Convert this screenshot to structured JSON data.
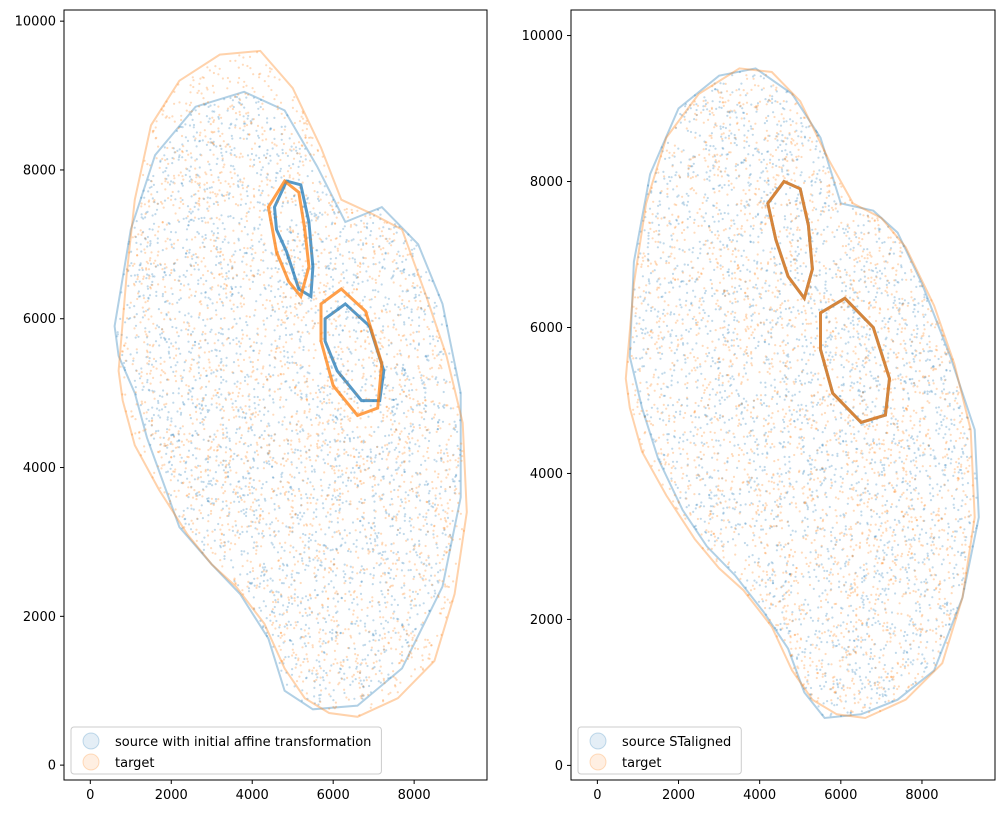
{
  "colors": {
    "source": "#1f77b4",
    "target": "#ff7f0e",
    "axes": "#000000",
    "legend_frame": "#cccccc"
  },
  "chart_data": [
    {
      "type": "scatter",
      "title": "",
      "xlabel": "",
      "ylabel": "",
      "xlim": [
        -650,
        9800
      ],
      "ylim": [
        -200,
        10150
      ],
      "xticks": [
        0,
        2000,
        4000,
        6000,
        8000
      ],
      "xtick_labels": [
        "0",
        "2000",
        "4000",
        "6000",
        "8000"
      ],
      "yticks": [
        0,
        2000,
        4000,
        6000,
        8000,
        10000
      ],
      "ytick_labels": [
        "0",
        "2000",
        "4000",
        "6000",
        "8000",
        "10000"
      ],
      "grid": false,
      "legend_position": "lower-left",
      "series": [
        {
          "name": "source with initial affine transformation",
          "color": "#1f77b4",
          "outline": [
            [
              600,
              5900
            ],
            [
              1000,
              7200
            ],
            [
              1600,
              8200
            ],
            [
              2600,
              8850
            ],
            [
              3800,
              9050
            ],
            [
              4800,
              8800
            ],
            [
              5600,
              8050
            ],
            [
              6300,
              7300
            ],
            [
              7200,
              7500
            ],
            [
              8100,
              7000
            ],
            [
              8700,
              6200
            ],
            [
              9150,
              5000
            ],
            [
              9150,
              3600
            ],
            [
              8700,
              2400
            ],
            [
              7700,
              1300
            ],
            [
              6600,
              800
            ],
            [
              5500,
              750
            ],
            [
              4800,
              1000
            ],
            [
              4400,
              1700
            ],
            [
              3700,
              2300
            ],
            [
              3000,
              2700
            ],
            [
              2200,
              3200
            ],
            [
              1800,
              3800
            ],
            [
              1400,
              4400
            ],
            [
              1100,
              5000
            ],
            [
              700,
              5500
            ]
          ],
          "features": [
            {
              "kind": "loop",
              "points": [
                [
                  4550,
                  7500
                ],
                [
                  4850,
                  7850
                ],
                [
                  5200,
                  7800
                ],
                [
                  5400,
                  7300
                ],
                [
                  5500,
                  6700
                ],
                [
                  5450,
                  6300
                ],
                [
                  5150,
                  6400
                ],
                [
                  4850,
                  6900
                ],
                [
                  4600,
                  7200
                ]
              ]
            },
            {
              "kind": "loop",
              "points": [
                [
                  5800,
                  6000
                ],
                [
                  6300,
                  6200
                ],
                [
                  6900,
                  5900
                ],
                [
                  7250,
                  5300
                ],
                [
                  7150,
                  4900
                ],
                [
                  6700,
                  4900
                ],
                [
                  6100,
                  5300
                ],
                [
                  5800,
                  5700
                ]
              ]
            }
          ],
          "n_points": 2600
        },
        {
          "name": "target",
          "color": "#ff7f0e",
          "outline": [
            [
              700,
              5300
            ],
            [
              900,
              6600
            ],
            [
              1100,
              7600
            ],
            [
              1500,
              8600
            ],
            [
              2200,
              9200
            ],
            [
              3200,
              9550
            ],
            [
              4200,
              9600
            ],
            [
              5000,
              9100
            ],
            [
              5700,
              8300
            ],
            [
              6200,
              7600
            ],
            [
              7000,
              7400
            ],
            [
              7700,
              7200
            ],
            [
              8300,
              6300
            ],
            [
              8800,
              5500
            ],
            [
              9200,
              4600
            ],
            [
              9300,
              3400
            ],
            [
              9000,
              2300
            ],
            [
              8500,
              1400
            ],
            [
              7600,
              900
            ],
            [
              6600,
              650
            ],
            [
              5900,
              700
            ],
            [
              5300,
              900
            ],
            [
              4800,
              1300
            ],
            [
              4300,
              1900
            ],
            [
              3600,
              2400
            ],
            [
              3000,
              2700
            ],
            [
              2400,
              3100
            ],
            [
              1700,
              3700
            ],
            [
              1100,
              4300
            ],
            [
              800,
              4900
            ]
          ],
          "features": [
            {
              "kind": "loop",
              "points": [
                [
                  4400,
                  7500
                ],
                [
                  4800,
                  7850
                ],
                [
                  5150,
                  7700
                ],
                [
                  5300,
                  7200
                ],
                [
                  5400,
                  6700
                ],
                [
                  5200,
                  6300
                ],
                [
                  4900,
                  6500
                ],
                [
                  4600,
                  6900
                ]
              ]
            },
            {
              "kind": "loop",
              "points": [
                [
                  5700,
                  6200
                ],
                [
                  6200,
                  6400
                ],
                [
                  6800,
                  6100
                ],
                [
                  7200,
                  5400
                ],
                [
                  7100,
                  4800
                ],
                [
                  6600,
                  4700
                ],
                [
                  6000,
                  5100
                ],
                [
                  5700,
                  5700
                ]
              ]
            }
          ],
          "n_points": 2600
        }
      ]
    },
    {
      "type": "scatter",
      "title": "",
      "xlabel": "",
      "ylabel": "",
      "xlim": [
        -650,
        9800
      ],
      "ylim": [
        -200,
        10350
      ],
      "xticks": [
        0,
        2000,
        4000,
        6000,
        8000
      ],
      "xtick_labels": [
        "0",
        "2000",
        "4000",
        "6000",
        "8000"
      ],
      "yticks": [
        0,
        2000,
        4000,
        6000,
        8000,
        10000
      ],
      "ytick_labels": [
        "0",
        "2000",
        "4000",
        "6000",
        "8000",
        "10000"
      ],
      "grid": false,
      "legend_position": "lower-left",
      "series": [
        {
          "name": "source STaligned",
          "color": "#1f77b4",
          "outline": [
            [
              800,
              5600
            ],
            [
              900,
              6900
            ],
            [
              1300,
              8100
            ],
            [
              2000,
              9000
            ],
            [
              3000,
              9450
            ],
            [
              3900,
              9550
            ],
            [
              4800,
              9200
            ],
            [
              5500,
              8600
            ],
            [
              6000,
              7700
            ],
            [
              6800,
              7600
            ],
            [
              7400,
              7300
            ],
            [
              8000,
              6600
            ],
            [
              8700,
              5600
            ],
            [
              9300,
              4600
            ],
            [
              9400,
              3400
            ],
            [
              9000,
              2300
            ],
            [
              8300,
              1300
            ],
            [
              7400,
              900
            ],
            [
              6500,
              700
            ],
            [
              5600,
              650
            ],
            [
              5100,
              1000
            ],
            [
              4700,
              1600
            ],
            [
              4100,
              2100
            ],
            [
              3400,
              2600
            ],
            [
              2700,
              3000
            ],
            [
              2100,
              3500
            ],
            [
              1500,
              4200
            ],
            [
              1100,
              4900
            ]
          ],
          "features": [
            {
              "kind": "loop",
              "points": [
                [
                  4200,
                  7700
                ],
                [
                  4600,
                  8000
                ],
                [
                  5000,
                  7900
                ],
                [
                  5200,
                  7400
                ],
                [
                  5300,
                  6800
                ],
                [
                  5100,
                  6400
                ],
                [
                  4700,
                  6700
                ],
                [
                  4400,
                  7200
                ]
              ]
            },
            {
              "kind": "loop",
              "points": [
                [
                  5500,
                  6200
                ],
                [
                  6100,
                  6400
                ],
                [
                  6800,
                  6000
                ],
                [
                  7200,
                  5300
                ],
                [
                  7100,
                  4800
                ],
                [
                  6500,
                  4700
                ],
                [
                  5800,
                  5100
                ],
                [
                  5500,
                  5700
                ]
              ]
            }
          ],
          "n_points": 2600
        },
        {
          "name": "target",
          "color": "#ff7f0e",
          "outline": [
            [
              700,
              5300
            ],
            [
              900,
              6600
            ],
            [
              1200,
              7700
            ],
            [
              1700,
              8600
            ],
            [
              2500,
              9200
            ],
            [
              3500,
              9550
            ],
            [
              4300,
              9500
            ],
            [
              5000,
              9100
            ],
            [
              5700,
              8300
            ],
            [
              6300,
              7700
            ],
            [
              7000,
              7500
            ],
            [
              7600,
              7100
            ],
            [
              8300,
              6300
            ],
            [
              8800,
              5500
            ],
            [
              9200,
              4600
            ],
            [
              9300,
              3400
            ],
            [
              9000,
              2300
            ],
            [
              8500,
              1400
            ],
            [
              7600,
              900
            ],
            [
              6600,
              650
            ],
            [
              5900,
              700
            ],
            [
              5300,
              900
            ],
            [
              4800,
              1300
            ],
            [
              4300,
              1900
            ],
            [
              3600,
              2400
            ],
            [
              3000,
              2700
            ],
            [
              2400,
              3100
            ],
            [
              1700,
              3700
            ],
            [
              1100,
              4300
            ],
            [
              800,
              4900
            ]
          ],
          "features": [
            {
              "kind": "loop",
              "points": [
                [
                  4200,
                  7700
                ],
                [
                  4600,
                  8000
                ],
                [
                  5000,
                  7900
                ],
                [
                  5200,
                  7400
                ],
                [
                  5300,
                  6800
                ],
                [
                  5100,
                  6400
                ],
                [
                  4700,
                  6700
                ],
                [
                  4400,
                  7200
                ]
              ]
            },
            {
              "kind": "loop",
              "points": [
                [
                  5500,
                  6200
                ],
                [
                  6100,
                  6400
                ],
                [
                  6800,
                  6000
                ],
                [
                  7200,
                  5300
                ],
                [
                  7100,
                  4800
                ],
                [
                  6500,
                  4700
                ],
                [
                  5800,
                  5100
                ],
                [
                  5500,
                  5700
                ]
              ]
            }
          ],
          "n_points": 2600
        }
      ]
    }
  ]
}
